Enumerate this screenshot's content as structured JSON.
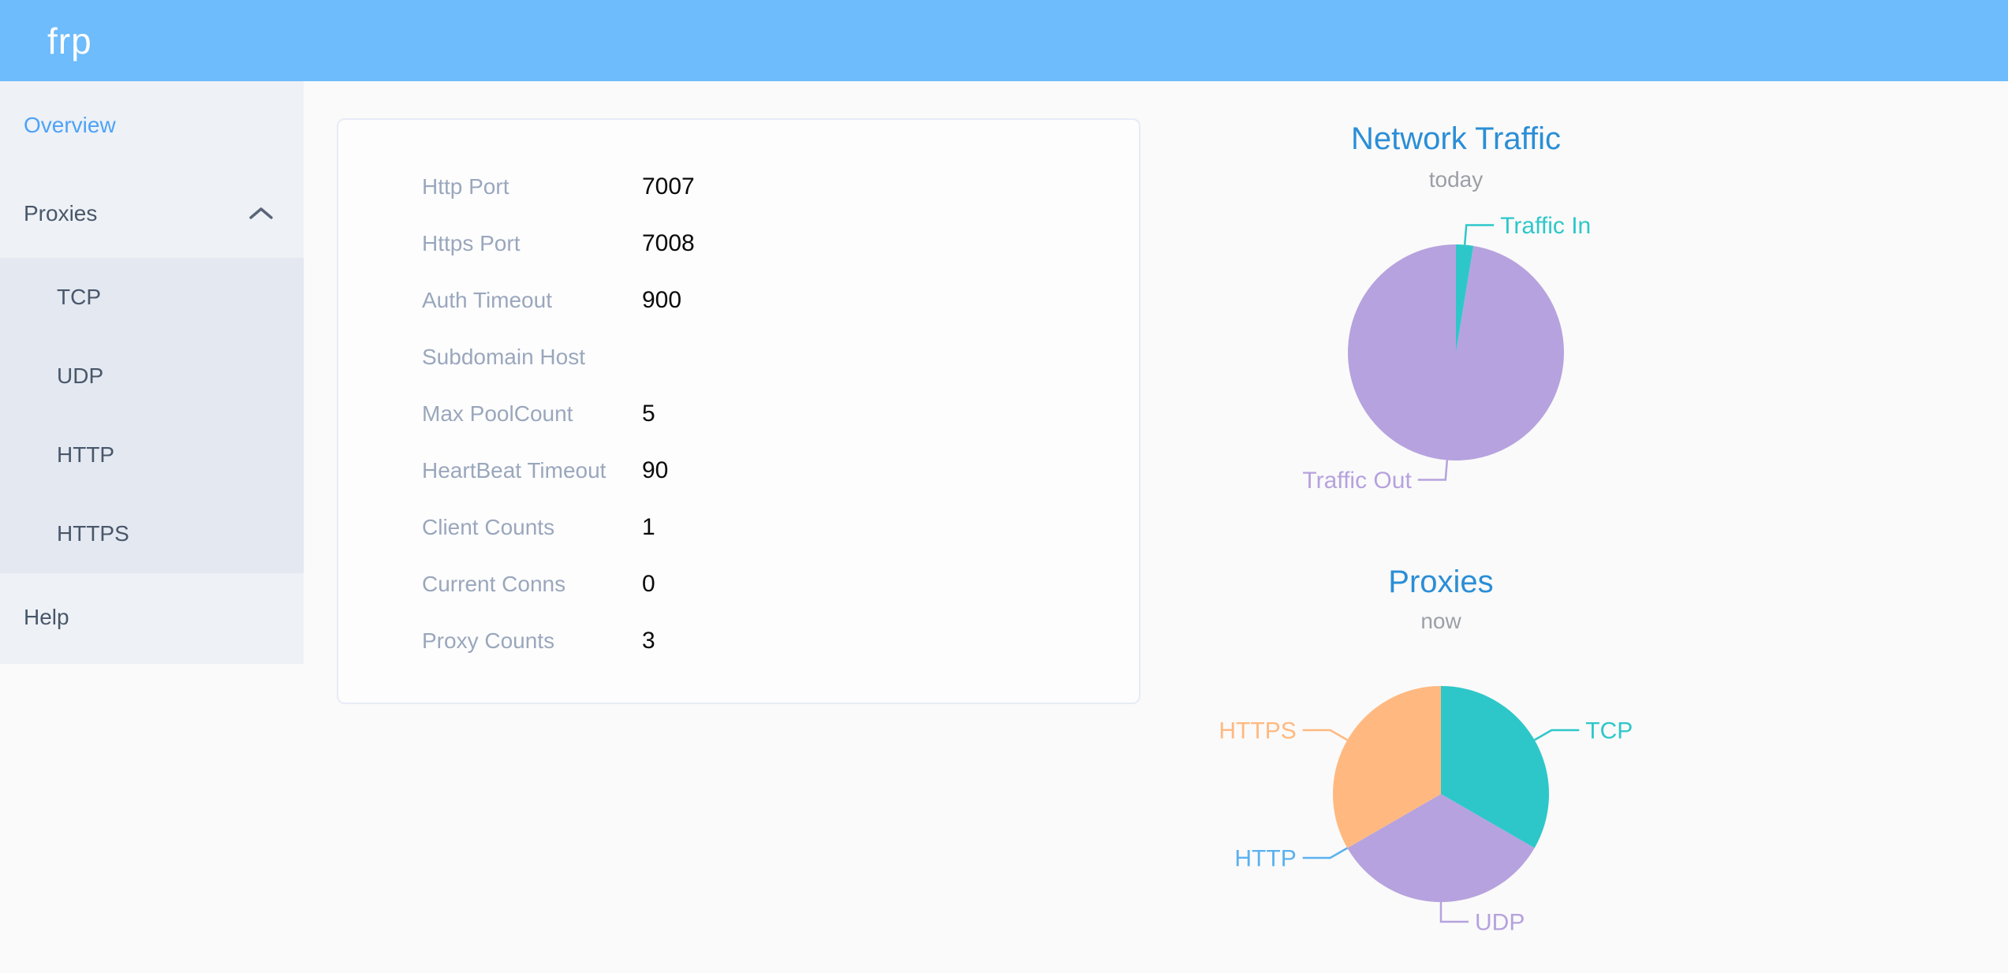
{
  "header": {
    "logo": "frp",
    "background_color": "#6ebcfb"
  },
  "sidebar": {
    "items": [
      {
        "label": "Overview",
        "active": true
      },
      {
        "label": "Proxies",
        "expanded": true,
        "children": [
          "TCP",
          "UDP",
          "HTTP",
          "HTTPS"
        ]
      },
      {
        "label": "Help",
        "active": false
      }
    ],
    "active_color": "#4da3f7",
    "text_color": "#48576a"
  },
  "server_info": {
    "rows": [
      {
        "label": "Http Port",
        "value": "7007"
      },
      {
        "label": "Https Port",
        "value": "7008"
      },
      {
        "label": "Auth Timeout",
        "value": "900"
      },
      {
        "label": "Subdomain Host",
        "value": ""
      },
      {
        "label": "Max PoolCount",
        "value": "5"
      },
      {
        "label": "HeartBeat Timeout",
        "value": "90"
      },
      {
        "label": "Client Counts",
        "value": "1"
      },
      {
        "label": "Current Conns",
        "value": "0"
      },
      {
        "label": "Proxy Counts",
        "value": "3"
      }
    ]
  },
  "chart_data": [
    {
      "type": "pie",
      "title": "Network Traffic",
      "subtitle": "today",
      "legend_position": "none",
      "labels": "outside-with-leader-lines",
      "values_are_percent": true,
      "series": [
        {
          "name": "Traffic In",
          "value": 2.6,
          "color": "#2ec7c9"
        },
        {
          "name": "Traffic Out",
          "value": 97.4,
          "color": "#b6a2de"
        }
      ]
    },
    {
      "type": "pie",
      "title": "Proxies",
      "subtitle": "now",
      "legend_position": "none",
      "labels": "outside-with-leader-lines",
      "values_are_counts": true,
      "series": [
        {
          "name": "TCP",
          "value": 1,
          "color": "#2ec7c9"
        },
        {
          "name": "UDP",
          "value": 1,
          "color": "#b6a2de"
        },
        {
          "name": "HTTP",
          "value": 0,
          "color": "#5ab1ef"
        },
        {
          "name": "HTTPS",
          "value": 1,
          "color": "#ffb980"
        }
      ]
    }
  ],
  "palette": {
    "teal": "#2ec7c9",
    "purple": "#b6a2de",
    "blue": "#5ab1ef",
    "orange": "#ffb980",
    "chart_title": "#2b8ed6",
    "chart_subtitle": "#9b9fa6"
  }
}
